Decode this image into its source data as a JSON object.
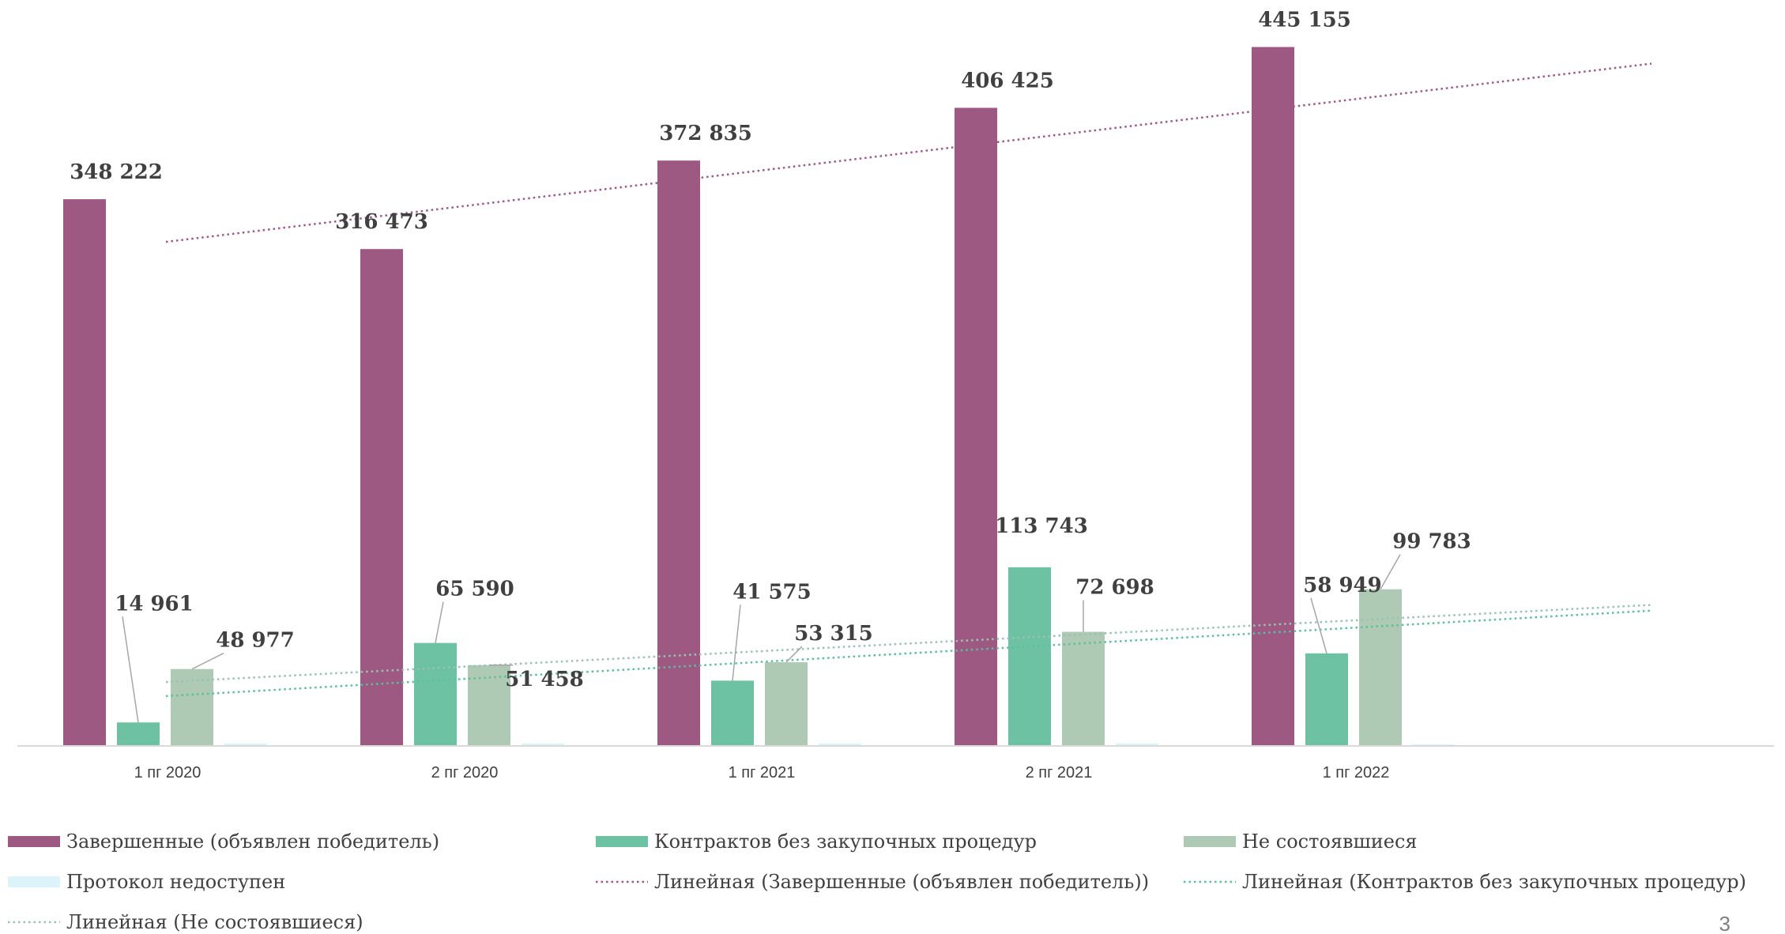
{
  "chart_data": {
    "type": "bar",
    "title": "",
    "xlabel": "",
    "ylabel": "",
    "categories": [
      "1 пг 2020",
      "2 пг 2020",
      "1 пг 2021",
      "2 пг 2021",
      "1 пг 2022"
    ],
    "ylim": [
      0,
      460000
    ],
    "grid": false,
    "legend_position": "bottom",
    "series": [
      {
        "name": "Завершенные (объявлен победитель)",
        "color": "#9e5983",
        "values": [
          348222,
          316473,
          372835,
          406425,
          445155
        ],
        "labels": [
          "348 222",
          "316 473",
          "372 835",
          "406 425",
          "445 155"
        ]
      },
      {
        "name": "Контрактов без закупочных процедур",
        "color": "#6dc2a3",
        "values": [
          14961,
          65590,
          41575,
          113743,
          58949
        ],
        "labels": [
          "14 961",
          "65 590",
          "41 575",
          "113 743",
          "58 949"
        ]
      },
      {
        "name": "Не состоявшиеся",
        "color": "#aecab5",
        "values": [
          48977,
          51458,
          53315,
          72698,
          99783
        ],
        "labels": [
          "48 977",
          "51 458",
          "53 315",
          "72 698",
          "99 783"
        ]
      },
      {
        "name": "Протокол недоступен",
        "color": "#dcf3f9",
        "values": [
          1500,
          1500,
          1500,
          1500,
          1000
        ],
        "labels": [
          "",
          "",
          "",
          "",
          ""
        ]
      }
    ],
    "trendlines": [
      {
        "name": "Линейная (Завершенные (объявлен победитель))",
        "series_index": 0,
        "color": "#9e5983"
      },
      {
        "name": "Линейная (Контрактов без закупочных процедур)",
        "series_index": 1,
        "color": "#5bbf9c"
      },
      {
        "name": "Линейная (Не состоявшиеся)",
        "series_index": 2,
        "color": "#99c2b2"
      }
    ]
  },
  "page_number": "3"
}
